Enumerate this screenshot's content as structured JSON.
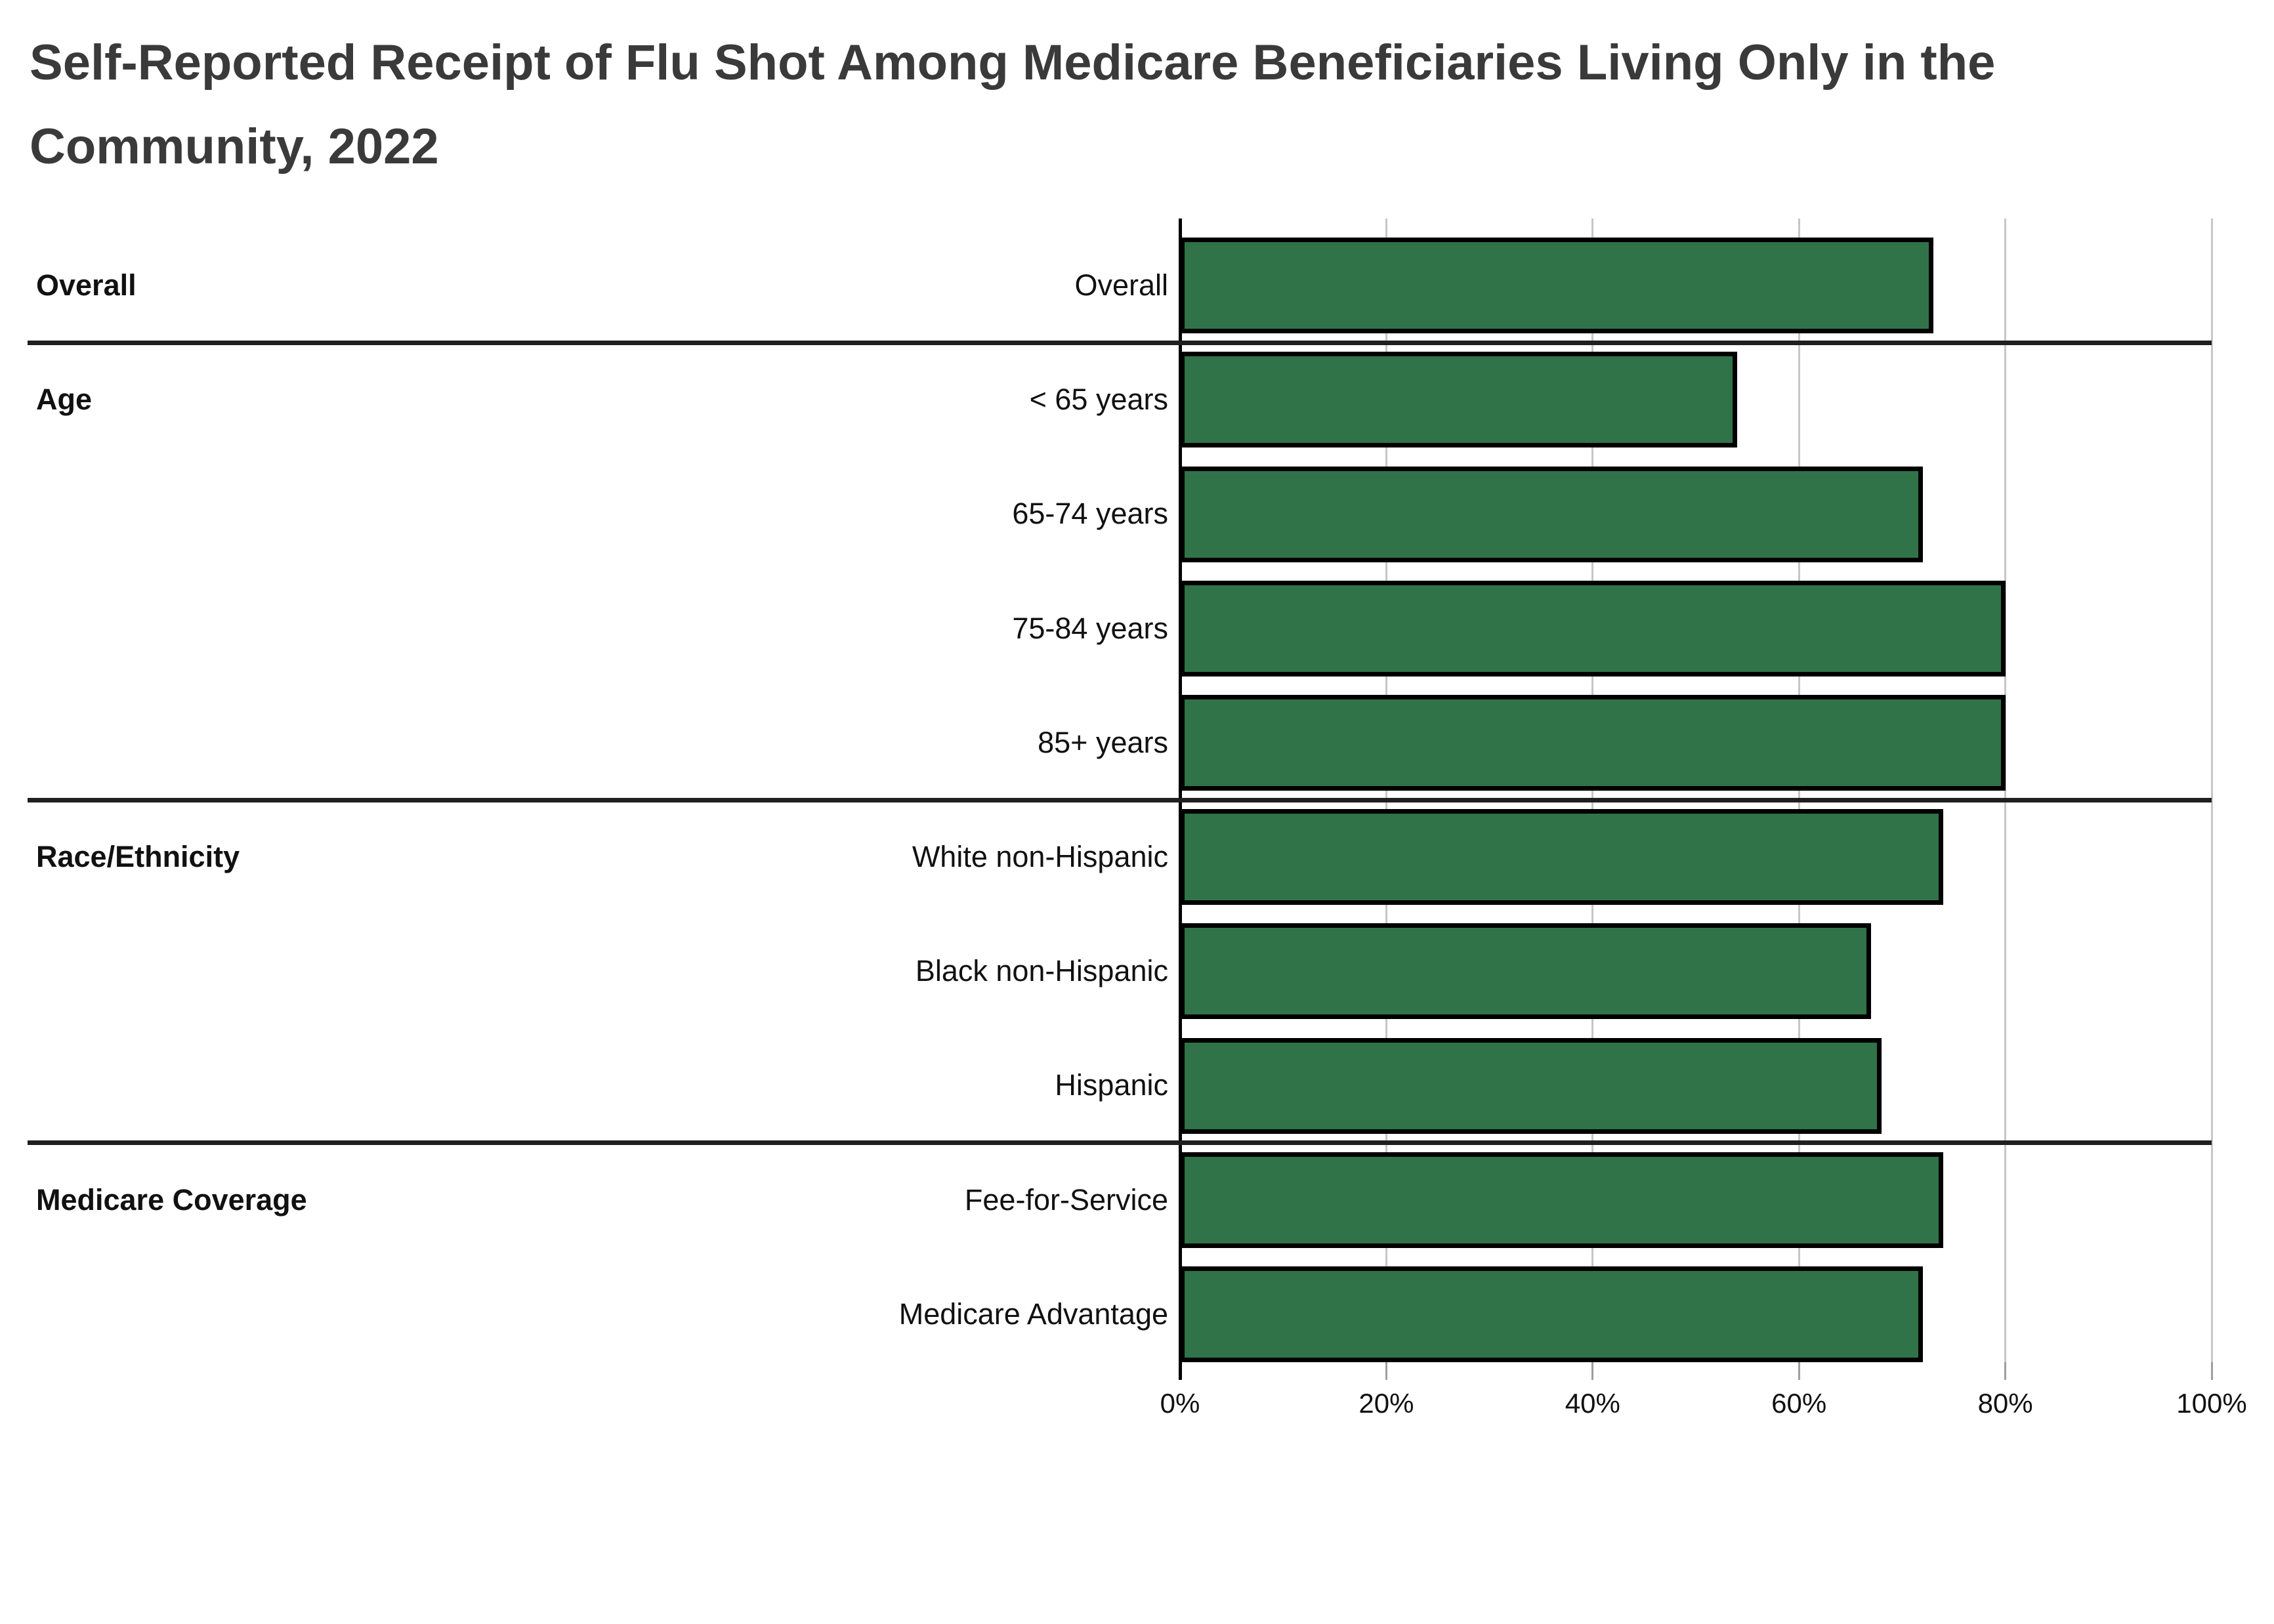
{
  "title": {
    "line1": "Self-Reported Receipt of Flu Shot Among Medicare Beneficiaries Living Only in the",
    "line2": "Community, 2022"
  },
  "chart_data": {
    "type": "bar",
    "orientation": "horizontal",
    "title": "Self-Reported Receipt of Flu Shot Among Medicare Beneficiaries Living Only in the Community, 2022",
    "value_unit": "%",
    "xlim": [
      0,
      100
    ],
    "x_tick_values": [
      0,
      20,
      40,
      60,
      80,
      100
    ],
    "x_tick_labels": [
      "0%",
      "20%",
      "40%",
      "60%",
      "80%",
      "100%"
    ],
    "grid": true,
    "legend": false,
    "colors": {
      "bar_fill": "#317349",
      "bar_border": "#000000",
      "gridline": "#c6c6c6",
      "axis_line": "#000000",
      "tick_mark": "#9e9e9e",
      "group_divider": "#1f1f1f",
      "title_text": "#3a3a3a",
      "label_text": "#111111"
    },
    "groups": [
      {
        "label": "Overall",
        "categories": [
          "Overall"
        ],
        "values": [
          73
        ]
      },
      {
        "label": "Age",
        "categories": [
          "< 65 years",
          "65-74 years",
          "75-84 years",
          "85+ years"
        ],
        "values": [
          54,
          72,
          80,
          80
        ]
      },
      {
        "label": "Race/Ethnicity",
        "categories": [
          "White non-Hispanic",
          "Black non-Hispanic",
          "Hispanic"
        ],
        "values": [
          74,
          67,
          68
        ]
      },
      {
        "label": "Medicare Coverage",
        "categories": [
          "Fee-for-Service",
          "Medicare Advantage"
        ],
        "values": [
          74,
          72
        ]
      }
    ]
  }
}
